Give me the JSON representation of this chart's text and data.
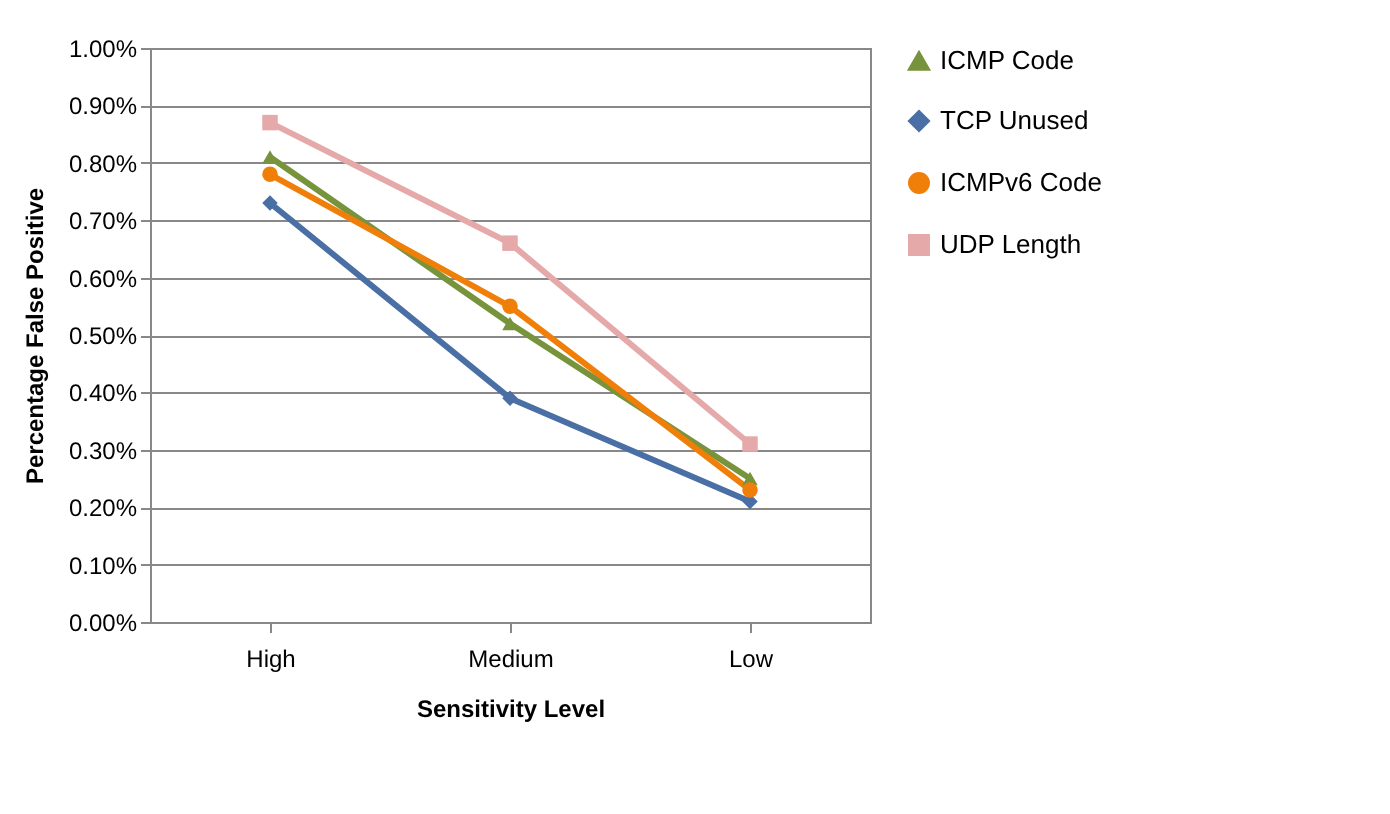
{
  "chart_data": {
    "type": "line",
    "xlabel": "Sensitivity Level",
    "ylabel": "Percentage False Positive",
    "categories": [
      "High",
      "Medium",
      "Low"
    ],
    "series": [
      {
        "name": "ICMP Code",
        "color": "#77933c",
        "marker": "triangle",
        "values": [
          0.81,
          0.52,
          0.25
        ]
      },
      {
        "name": "TCP Unused",
        "color": "#4a6fa5",
        "marker": "diamond",
        "values": [
          0.73,
          0.39,
          0.21
        ]
      },
      {
        "name": "ICMPv6 Code",
        "color": "#f07f09",
        "marker": "circle",
        "values": [
          0.78,
          0.55,
          0.23
        ]
      },
      {
        "name": "UDP Length",
        "color": "#e6a9a9",
        "marker": "square",
        "values": [
          0.87,
          0.66,
          0.31
        ]
      }
    ],
    "ylim": [
      0,
      1
    ],
    "yticks": [
      {
        "value": 0,
        "label": "0.00%"
      },
      {
        "value": 0.1,
        "label": "0.10%"
      },
      {
        "value": 0.2,
        "label": "0.20%"
      },
      {
        "value": 0.3,
        "label": "0.30%"
      },
      {
        "value": 0.4,
        "label": "0.40%"
      },
      {
        "value": 0.5,
        "label": "0.50%"
      },
      {
        "value": 0.6,
        "label": "0.60%"
      },
      {
        "value": 0.7,
        "label": "0.70%"
      },
      {
        "value": 0.8,
        "label": "0.80%"
      },
      {
        "value": 0.9,
        "label": "0.90%"
      },
      {
        "value": 1,
        "label": "1.00%"
      }
    ],
    "grid": "y",
    "legend": "right",
    "line_style": "solid"
  }
}
